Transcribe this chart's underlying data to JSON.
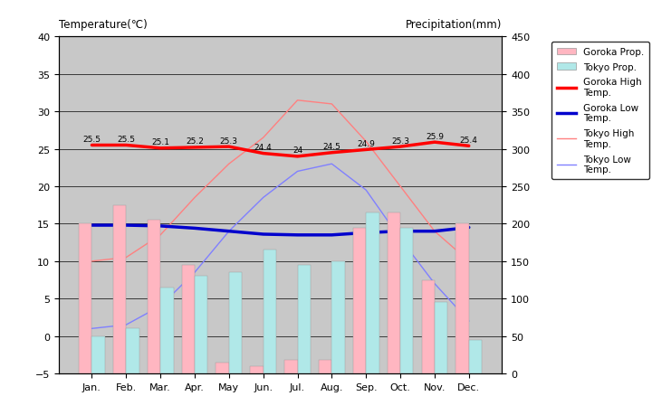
{
  "months": [
    "Jan.",
    "Feb.",
    "Mar.",
    "Apr.",
    "May",
    "Jun.",
    "Jul.",
    "Aug.",
    "Sep.",
    "Oct.",
    "Nov.",
    "Dec."
  ],
  "goroka_high": [
    25.5,
    25.5,
    25.1,
    25.2,
    25.3,
    24.4,
    24.0,
    24.5,
    24.9,
    25.3,
    25.9,
    25.4
  ],
  "goroka_high_labels": [
    "25.5",
    "25.5",
    "25.1",
    "25.2",
    "25.3",
    "24.4",
    "24",
    "24.5",
    "24.9",
    "25.3",
    "25.9",
    "25.4"
  ],
  "goroka_low": [
    14.8,
    14.8,
    14.7,
    14.4,
    14.0,
    13.6,
    13.5,
    13.5,
    13.8,
    14.0,
    14.0,
    14.5
  ],
  "tokyo_high": [
    10.0,
    10.5,
    13.5,
    18.5,
    23.0,
    26.5,
    31.5,
    31.0,
    26.0,
    20.0,
    14.0,
    10.0
  ],
  "tokyo_low": [
    1.0,
    1.5,
    4.0,
    8.5,
    14.0,
    18.5,
    22.0,
    23.0,
    19.5,
    13.0,
    7.0,
    2.0
  ],
  "goroka_precip": [
    200,
    225,
    205,
    145,
    15,
    10,
    18,
    18,
    195,
    215,
    125,
    200
  ],
  "tokyo_precip": [
    50,
    60,
    115,
    130,
    135,
    165,
    145,
    150,
    215,
    195,
    95,
    45
  ],
  "goroka_precip_color": "#FFB6C1",
  "tokyo_precip_color": "#B0E8E8",
  "goroka_high_color": "#FF0000",
  "goroka_low_color": "#0000CD",
  "tokyo_high_color": "#FF8080",
  "tokyo_low_color": "#8080FF",
  "temp_ylim": [
    -5,
    40
  ],
  "precip_ylim": [
    0,
    450
  ],
  "temp_yticks": [
    -5,
    0,
    5,
    10,
    15,
    20,
    25,
    30,
    35,
    40
  ],
  "precip_yticks": [
    0,
    50,
    100,
    150,
    200,
    250,
    300,
    350,
    400,
    450
  ],
  "bg_color": "#C8C8C8",
  "title_left": "Temperature(℃)",
  "title_right": "Precipitation(mm)"
}
